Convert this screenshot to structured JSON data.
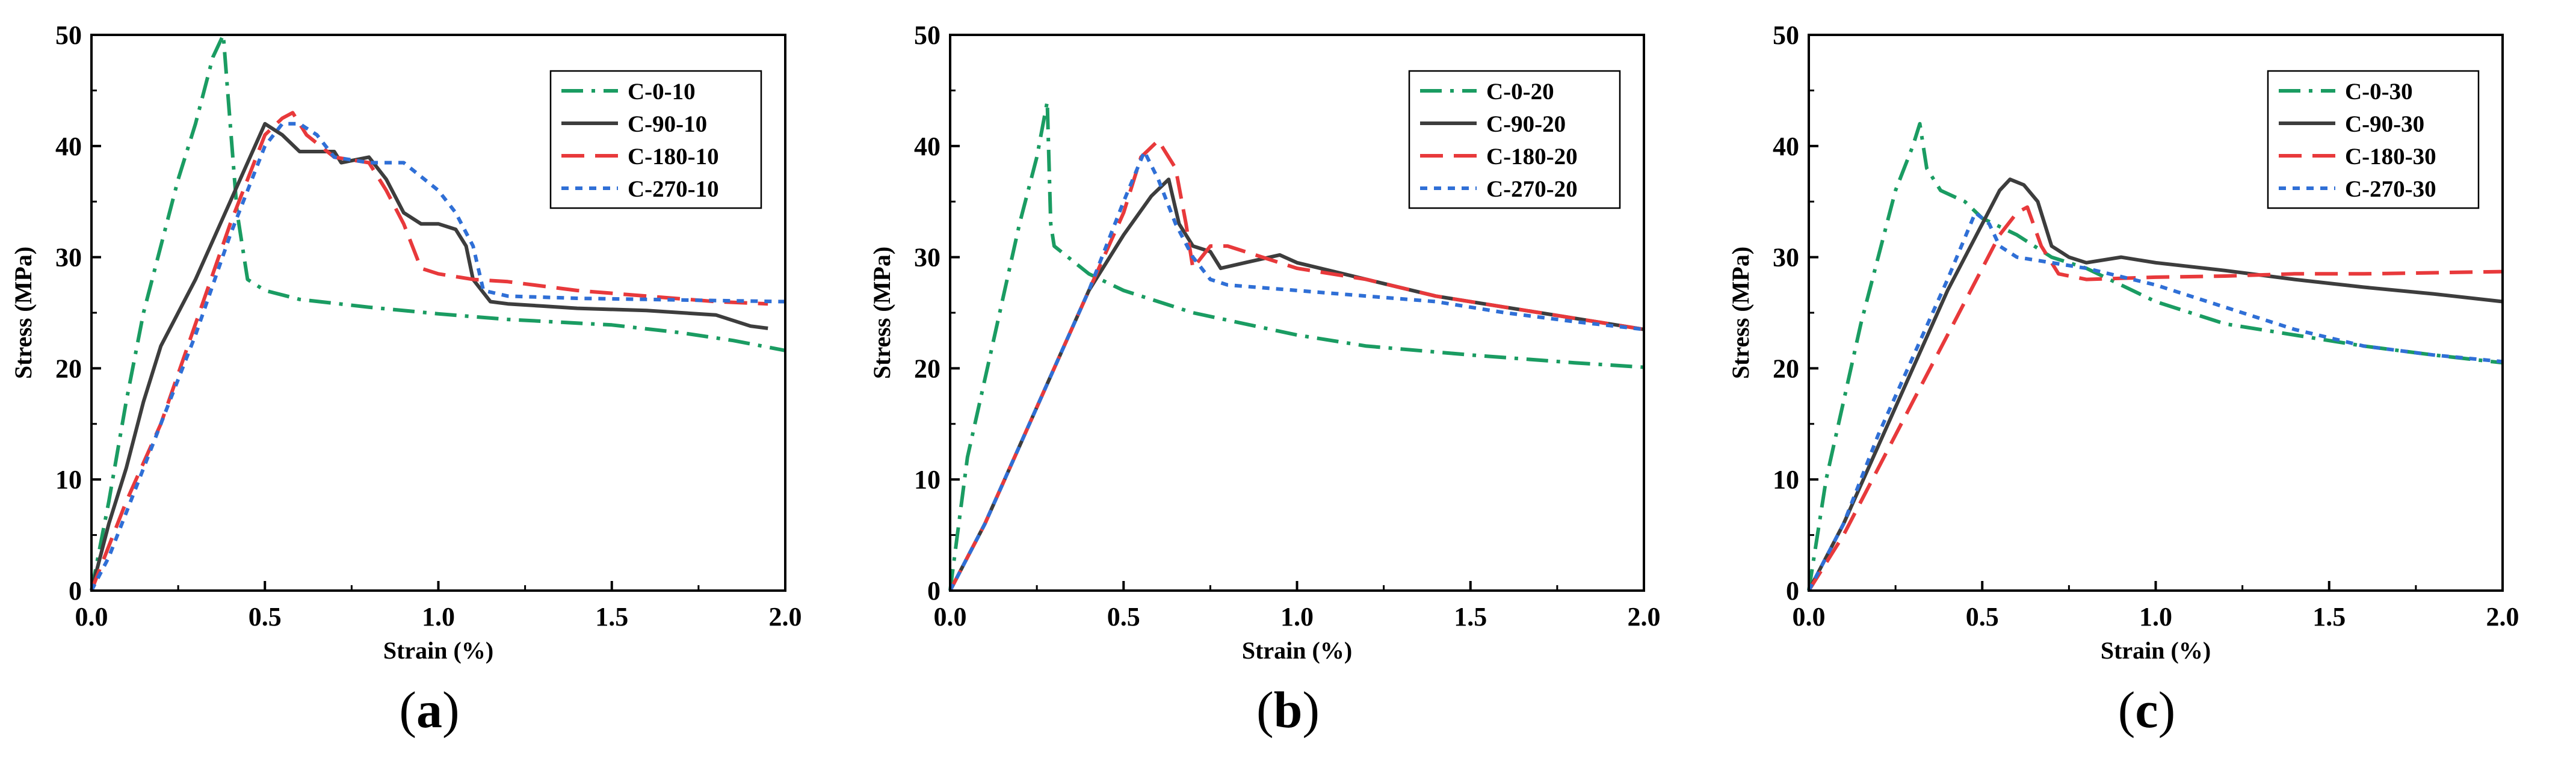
{
  "chart_data": [
    {
      "type": "line",
      "panel_label": "a",
      "xlabel": "Strain (%)",
      "ylabel": "Stress (MPa)",
      "xlim": [
        0,
        2.0
      ],
      "ylim": [
        0,
        50
      ],
      "xticks": [
        0.0,
        0.5,
        1.0,
        1.5,
        2.0
      ],
      "yticks": [
        0,
        10,
        20,
        30,
        40,
        50
      ],
      "xtick_labels": [
        "0.0",
        "0.5",
        "1.0",
        "1.5",
        "2.0"
      ],
      "ytick_labels": [
        "0",
        "10",
        "20",
        "30",
        "40",
        "50"
      ],
      "legend_position": "top-right",
      "series": [
        {
          "name": "C-0-10",
          "color": "#1a9c62",
          "dash": "dashdot",
          "x": [
            0,
            0.05,
            0.1,
            0.15,
            0.2,
            0.25,
            0.3,
            0.35,
            0.38,
            0.39,
            0.42,
            0.45,
            0.5,
            0.6,
            0.8,
            1.0,
            1.2,
            1.5,
            1.7,
            1.85,
            2.0
          ],
          "y": [
            0,
            8,
            17,
            25,
            31,
            37,
            42,
            48,
            50,
            46,
            34,
            28,
            27,
            26.2,
            25.5,
            24.9,
            24.4,
            23.9,
            23.2,
            22.5,
            21.6
          ]
        },
        {
          "name": "C-90-10",
          "color": "#3d3d3d",
          "dash": "solid",
          "x": [
            0,
            0.05,
            0.1,
            0.15,
            0.2,
            0.3,
            0.4,
            0.5,
            0.55,
            0.6,
            0.7,
            0.72,
            0.8,
            0.85,
            0.9,
            0.95,
            1.0,
            1.05,
            1.08,
            1.1,
            1.15,
            1.2,
            1.3,
            1.4,
            1.6,
            1.8,
            1.9,
            1.95
          ],
          "y": [
            0,
            6,
            11,
            17,
            22,
            28,
            35,
            42,
            41,
            39.5,
            39.5,
            38.5,
            39,
            37,
            34,
            33,
            33,
            32.5,
            31,
            28,
            26,
            25.8,
            25.6,
            25.4,
            25.2,
            24.8,
            23.8,
            23.6
          ]
        },
        {
          "name": "C-180-10",
          "color": "#e8393b",
          "dash": "dashed",
          "x": [
            0,
            0.05,
            0.1,
            0.2,
            0.3,
            0.4,
            0.5,
            0.55,
            0.58,
            0.62,
            0.7,
            0.8,
            0.85,
            0.9,
            0.95,
            1.0,
            1.1,
            1.2,
            1.4,
            1.6,
            1.8,
            1.95
          ],
          "y": [
            0,
            4,
            8,
            15,
            24,
            33,
            41,
            42.5,
            43,
            41,
            39,
            38.5,
            36,
            33,
            29,
            28.5,
            28,
            27.8,
            27,
            26.5,
            26,
            25.8
          ]
        },
        {
          "name": "C-270-10",
          "color": "#2f6fd6",
          "dash": "dotted",
          "x": [
            0,
            0.05,
            0.1,
            0.2,
            0.3,
            0.4,
            0.5,
            0.55,
            0.6,
            0.65,
            0.7,
            0.8,
            0.9,
            1.0,
            1.05,
            1.1,
            1.13,
            1.2,
            1.4,
            1.6,
            1.8,
            2.0
          ],
          "y": [
            0,
            3,
            7,
            15,
            23,
            32,
            40,
            42,
            42,
            41,
            39,
            38.5,
            38.5,
            36,
            34,
            31,
            27,
            26.5,
            26.3,
            26.2,
            26.1,
            26
          ]
        }
      ]
    },
    {
      "type": "line",
      "panel_label": "b",
      "xlabel": "Strain (%)",
      "ylabel": "Stress (MPa)",
      "xlim": [
        0,
        2.0
      ],
      "ylim": [
        0,
        50
      ],
      "xticks": [
        0.0,
        0.5,
        1.0,
        1.5,
        2.0
      ],
      "yticks": [
        0,
        10,
        20,
        30,
        40,
        50
      ],
      "xtick_labels": [
        "0.0",
        "0.5",
        "1.0",
        "1.5",
        "2.0"
      ],
      "ytick_labels": [
        "0",
        "10",
        "20",
        "30",
        "40",
        "50"
      ],
      "legend_position": "top-right",
      "series": [
        {
          "name": "C-0-20",
          "color": "#1a9c62",
          "dash": "dashdot",
          "x": [
            0,
            0.05,
            0.1,
            0.15,
            0.2,
            0.25,
            0.28,
            0.29,
            0.3,
            0.4,
            0.5,
            0.7,
            1.0,
            1.2,
            1.5,
            1.8,
            2.0
          ],
          "y": [
            0,
            12,
            19,
            26,
            33,
            39,
            44,
            33,
            31,
            28.5,
            27,
            25,
            23,
            22,
            21.2,
            20.5,
            20.1
          ]
        },
        {
          "name": "C-90-20",
          "color": "#3d3d3d",
          "dash": "solid",
          "x": [
            0,
            0.1,
            0.2,
            0.3,
            0.4,
            0.5,
            0.58,
            0.63,
            0.66,
            0.7,
            0.75,
            0.78,
            0.85,
            0.95,
            1.0,
            1.2,
            1.4,
            1.6,
            1.8,
            2.0
          ],
          "y": [
            0,
            6,
            13,
            20,
            27,
            32,
            35.5,
            37,
            33,
            31,
            30.5,
            29,
            29.5,
            30.2,
            29.5,
            28,
            26.5,
            25.5,
            24.5,
            23.5
          ]
        },
        {
          "name": "C-180-20",
          "color": "#e8393b",
          "dash": "dashed",
          "x": [
            0,
            0.1,
            0.2,
            0.3,
            0.4,
            0.5,
            0.55,
            0.6,
            0.65,
            0.68,
            0.7,
            0.75,
            0.8,
            0.9,
            1.0,
            1.2,
            1.4,
            1.6,
            1.8,
            2.0
          ],
          "y": [
            0,
            6,
            13,
            20,
            27,
            34,
            39,
            40.5,
            38,
            33,
            29,
            31,
            31,
            30,
            29,
            28,
            26.5,
            25.5,
            24.5,
            23.5
          ]
        },
        {
          "name": "C-270-20",
          "color": "#2f6fd6",
          "dash": "dotted",
          "x": [
            0,
            0.1,
            0.2,
            0.3,
            0.4,
            0.5,
            0.56,
            0.6,
            0.65,
            0.7,
            0.75,
            0.8,
            1.0,
            1.2,
            1.4,
            1.6,
            1.8,
            2.0
          ],
          "y": [
            0,
            6,
            13,
            20,
            27,
            35,
            39.5,
            37,
            33,
            30,
            28,
            27.5,
            27,
            26.5,
            26,
            25,
            24.2,
            23.5
          ]
        }
      ]
    },
    {
      "type": "line",
      "panel_label": "c",
      "xlabel": "Strain (%)",
      "ylabel": "Stress (MPa)",
      "xlim": [
        0,
        2.0
      ],
      "ylim": [
        0,
        50
      ],
      "xticks": [
        0.0,
        0.5,
        1.0,
        1.5,
        2.0
      ],
      "yticks": [
        0,
        10,
        20,
        30,
        40,
        50
      ],
      "xtick_labels": [
        "0.0",
        "0.5",
        "1.0",
        "1.5",
        "2.0"
      ],
      "ytick_labels": [
        "0",
        "10",
        "20",
        "30",
        "40",
        "50"
      ],
      "legend_position": "top-right",
      "series": [
        {
          "name": "C-0-30",
          "color": "#1a9c62",
          "dash": "dashdot",
          "x": [
            0,
            0.05,
            0.1,
            0.15,
            0.2,
            0.25,
            0.3,
            0.32,
            0.34,
            0.38,
            0.45,
            0.5,
            0.6,
            0.7,
            0.8,
            1.0,
            1.2,
            1.4,
            1.6,
            1.8,
            2.0
          ],
          "y": [
            0,
            10,
            17,
            24,
            30,
            36,
            40,
            42,
            38,
            36,
            35,
            33.5,
            32,
            30,
            29,
            26,
            24,
            23,
            22,
            21.2,
            20.5
          ]
        },
        {
          "name": "C-90-30",
          "color": "#3d3d3d",
          "dash": "solid",
          "x": [
            0,
            0.1,
            0.2,
            0.3,
            0.4,
            0.5,
            0.55,
            0.58,
            0.62,
            0.66,
            0.7,
            0.75,
            0.8,
            0.9,
            1.0,
            1.2,
            1.4,
            1.6,
            1.8,
            2.0
          ],
          "y": [
            0,
            6,
            13,
            20,
            27,
            33,
            36,
            37,
            36.5,
            35,
            31,
            30,
            29.5,
            30,
            29.5,
            28.8,
            28,
            27.3,
            26.7,
            26
          ]
        },
        {
          "name": "C-180-30",
          "color": "#e8393b",
          "dash": "dashed",
          "x": [
            0,
            0.1,
            0.2,
            0.3,
            0.4,
            0.5,
            0.55,
            0.6,
            0.63,
            0.67,
            0.72,
            0.8,
            1.0,
            1.2,
            1.4,
            1.6,
            1.8,
            2.0
          ],
          "y": [
            0,
            5,
            11,
            17,
            23,
            29,
            32,
            34,
            34.5,
            31,
            28.5,
            28,
            28.2,
            28.3,
            28.5,
            28.5,
            28.6,
            28.7
          ]
        },
        {
          "name": "C-270-30",
          "color": "#2f6fd6",
          "dash": "dotted",
          "x": [
            0,
            0.1,
            0.2,
            0.3,
            0.4,
            0.48,
            0.52,
            0.55,
            0.6,
            0.7,
            0.8,
            1.0,
            1.2,
            1.4,
            1.6,
            1.8,
            2.0
          ],
          "y": [
            0,
            6,
            14,
            21,
            28,
            34,
            33,
            31,
            30,
            29.5,
            29,
            27.5,
            25.5,
            23.5,
            22,
            21.2,
            20.6
          ]
        }
      ]
    }
  ]
}
